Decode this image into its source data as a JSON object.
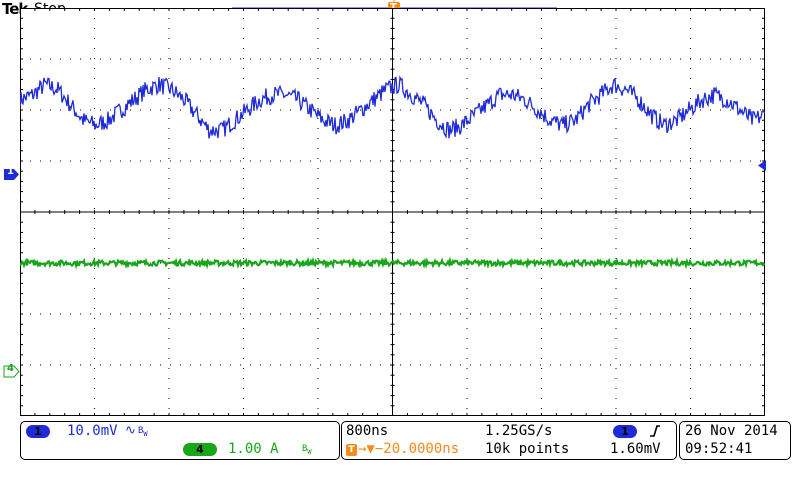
{
  "header": {
    "brand": "Tek",
    "acquisition_state": "Stop"
  },
  "markers": {
    "ch1": "1",
    "ch4": "4",
    "trigger": "T"
  },
  "colors": {
    "ch1": "#1e2bd6",
    "ch4": "#1aa61a",
    "trigger": "#f28c1c",
    "grid": "#000000"
  },
  "channel_panel": {
    "ch1_badge": "1",
    "ch1_scale": "10.0mV",
    "ch1_coupling": "∿",
    "ch1_bw": "B",
    "ch1_bw_sub": "W",
    "ch4_badge": "4",
    "ch4_scale": "1.00 A",
    "ch4_bw": "B",
    "ch4_bw_sub": "W"
  },
  "timebase_panel": {
    "time_per_div": "800ns",
    "sample_rate": "1.25GS/s",
    "trigger_source_badge": "1",
    "trigger_slope_icon": "rising-edge-icon",
    "trigger_position": "→▼−20.0000ns",
    "record_length": "10k points",
    "trigger_level": "1.60mV"
  },
  "datetime_panel": {
    "date": "26 Nov 2014",
    "time": "09:52:41"
  },
  "chart_data": {
    "type": "line",
    "xlabel": "",
    "ylabel": "",
    "grid": true,
    "horizontal_divisions": 10,
    "vertical_divisions": 8,
    "series": [
      {
        "name": "1",
        "y": [
          2.2,
          2.3,
          2.5,
          2.4,
          2.1,
          1.8,
          1.7,
          1.8,
          2.0,
          2.2,
          2.4,
          2.5,
          2.4,
          2.2,
          1.9,
          1.6,
          1.6,
          1.8,
          2.0,
          2.2,
          2.3,
          2.3,
          2.2,
          2.0,
          1.8,
          1.7,
          1.8,
          2.0,
          2.2,
          2.4,
          2.5,
          2.3,
          2.1,
          1.8,
          1.6,
          1.7,
          1.9,
          2.1,
          2.3,
          2.3,
          2.2,
          2.0,
          1.8,
          1.7,
          1.8,
          2.1,
          2.3,
          2.5,
          2.4,
          2.2,
          1.9,
          1.7,
          1.8,
          2.0,
          2.2,
          2.3,
          2.2,
          2.0,
          1.8,
          1.9
        ]
      },
      {
        "name": "4",
        "y": [
          -1.0,
          -1.0
        ]
      }
    ]
  }
}
